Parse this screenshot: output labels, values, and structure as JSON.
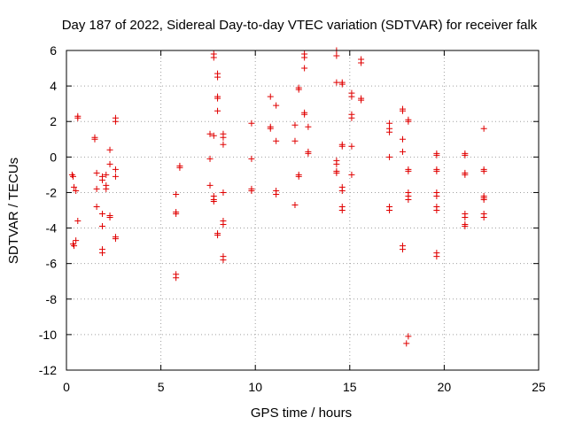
{
  "chart_data": {
    "type": "scatter",
    "title": "Day 187 of 2022, Sidereal Day-to-day VTEC variation (SDTVAR) for receiver falk",
    "xlabel": "GPS time / hours",
    "ylabel": "SDTVAR / TECUs",
    "xlim": [
      0,
      25
    ],
    "ylim": [
      -12,
      6
    ],
    "xticks": [
      0,
      5,
      10,
      15,
      20,
      25
    ],
    "yticks": [
      -12,
      -10,
      -8,
      -6,
      -4,
      -2,
      0,
      2,
      4,
      6
    ],
    "xtick_labels": [
      "0",
      "5",
      "10",
      "15",
      "20",
      "25"
    ],
    "ytick_labels": [
      "-12",
      "-10",
      "-8",
      "-6",
      "-4",
      "-2",
      "0",
      "2",
      "4",
      "6"
    ],
    "grid": true,
    "marker": "plus",
    "color": "#e00000",
    "series": [
      {
        "name": "SDTVAR",
        "points": [
          [
            0.3,
            -1.0
          ],
          [
            0.35,
            -1.1
          ],
          [
            0.4,
            -1.7
          ],
          [
            0.5,
            -1.9
          ],
          [
            0.35,
            -4.9
          ],
          [
            0.4,
            -5.0
          ],
          [
            0.5,
            -4.7
          ],
          [
            0.6,
            2.3
          ],
          [
            0.6,
            2.2
          ],
          [
            0.6,
            -3.6
          ],
          [
            1.5,
            1.1
          ],
          [
            1.5,
            1.0
          ],
          [
            1.6,
            -0.9
          ],
          [
            1.6,
            -1.8
          ],
          [
            1.6,
            -2.8
          ],
          [
            1.9,
            -1.1
          ],
          [
            1.9,
            -1.3
          ],
          [
            1.9,
            -3.2
          ],
          [
            1.9,
            -3.9
          ],
          [
            1.9,
            -5.2
          ],
          [
            1.9,
            -5.4
          ],
          [
            2.1,
            -1.0
          ],
          [
            2.1,
            -1.6
          ],
          [
            2.1,
            -1.8
          ],
          [
            2.3,
            0.4
          ],
          [
            2.3,
            -0.4
          ],
          [
            2.3,
            -3.3
          ],
          [
            2.3,
            -3.4
          ],
          [
            2.6,
            2.2
          ],
          [
            2.6,
            2.0
          ],
          [
            2.6,
            -0.7
          ],
          [
            2.6,
            -1.1
          ],
          [
            2.6,
            -4.5
          ],
          [
            2.6,
            -4.6
          ],
          [
            5.8,
            -2.1
          ],
          [
            5.8,
            -3.1
          ],
          [
            5.8,
            -3.2
          ],
          [
            5.8,
            -6.6
          ],
          [
            5.8,
            -6.8
          ],
          [
            6.0,
            -0.5
          ],
          [
            6.0,
            -0.6
          ],
          [
            7.6,
            1.3
          ],
          [
            7.6,
            -0.1
          ],
          [
            7.6,
            -1.6
          ],
          [
            7.8,
            5.8
          ],
          [
            7.8,
            5.6
          ],
          [
            7.8,
            1.2
          ],
          [
            7.8,
            -2.2
          ],
          [
            7.8,
            -2.4
          ],
          [
            7.8,
            -2.5
          ],
          [
            8.0,
            4.7
          ],
          [
            8.0,
            4.5
          ],
          [
            8.0,
            3.4
          ],
          [
            8.0,
            3.3
          ],
          [
            8.0,
            2.6
          ],
          [
            8.0,
            -4.3
          ],
          [
            8.0,
            -4.4
          ],
          [
            8.3,
            1.3
          ],
          [
            8.3,
            1.1
          ],
          [
            8.3,
            0.7
          ],
          [
            8.3,
            -2.0
          ],
          [
            8.3,
            -3.6
          ],
          [
            8.3,
            -3.8
          ],
          [
            8.3,
            -5.6
          ],
          [
            8.3,
            -5.8
          ],
          [
            9.8,
            1.9
          ],
          [
            9.8,
            -0.1
          ],
          [
            9.8,
            -1.8
          ],
          [
            9.8,
            -1.9
          ],
          [
            10.8,
            3.4
          ],
          [
            10.8,
            1.7
          ],
          [
            10.8,
            1.6
          ],
          [
            11.1,
            2.9
          ],
          [
            11.1,
            0.9
          ],
          [
            11.1,
            -1.9
          ],
          [
            11.1,
            -2.1
          ],
          [
            12.1,
            1.8
          ],
          [
            12.1,
            0.9
          ],
          [
            12.1,
            -2.7
          ],
          [
            12.3,
            3.9
          ],
          [
            12.3,
            3.8
          ],
          [
            12.3,
            -1.0
          ],
          [
            12.3,
            -1.1
          ],
          [
            12.6,
            5.8
          ],
          [
            12.6,
            5.6
          ],
          [
            12.6,
            5.0
          ],
          [
            12.6,
            2.5
          ],
          [
            12.6,
            2.4
          ],
          [
            12.8,
            1.7
          ],
          [
            12.8,
            0.3
          ],
          [
            12.8,
            0.2
          ],
          [
            14.3,
            6.0
          ],
          [
            14.3,
            5.7
          ],
          [
            14.3,
            4.2
          ],
          [
            14.3,
            -0.2
          ],
          [
            14.3,
            -0.4
          ],
          [
            14.3,
            -0.8
          ],
          [
            14.3,
            -0.9
          ],
          [
            14.6,
            4.2
          ],
          [
            14.6,
            4.1
          ],
          [
            14.6,
            0.7
          ],
          [
            14.6,
            0.6
          ],
          [
            14.6,
            -1.7
          ],
          [
            14.6,
            -1.9
          ],
          [
            14.6,
            -2.8
          ],
          [
            14.6,
            -3.0
          ],
          [
            15.1,
            3.6
          ],
          [
            15.1,
            3.4
          ],
          [
            15.1,
            2.4
          ],
          [
            15.1,
            2.2
          ],
          [
            15.1,
            0.6
          ],
          [
            15.1,
            -1.0
          ],
          [
            15.6,
            5.5
          ],
          [
            15.6,
            5.3
          ],
          [
            15.6,
            3.3
          ],
          [
            15.6,
            3.2
          ],
          [
            17.1,
            1.9
          ],
          [
            17.1,
            1.6
          ],
          [
            17.1,
            1.4
          ],
          [
            17.1,
            0.0
          ],
          [
            17.1,
            -2.8
          ],
          [
            17.1,
            -3.0
          ],
          [
            17.8,
            2.7
          ],
          [
            17.8,
            2.6
          ],
          [
            17.8,
            1.0
          ],
          [
            17.8,
            0.3
          ],
          [
            17.8,
            -5.0
          ],
          [
            17.8,
            -5.2
          ],
          [
            18.1,
            2.1
          ],
          [
            18.1,
            2.0
          ],
          [
            18.1,
            -0.7
          ],
          [
            18.1,
            -0.8
          ],
          [
            18.1,
            -2.0
          ],
          [
            18.1,
            -2.2
          ],
          [
            18.1,
            -2.4
          ],
          [
            18.1,
            -10.1
          ],
          [
            18.0,
            -10.5
          ],
          [
            19.6,
            0.2
          ],
          [
            19.6,
            0.1
          ],
          [
            19.6,
            -0.7
          ],
          [
            19.6,
            -0.8
          ],
          [
            19.6,
            -2.0
          ],
          [
            19.6,
            -2.2
          ],
          [
            19.6,
            -2.8
          ],
          [
            19.6,
            -3.0
          ],
          [
            19.6,
            -5.4
          ],
          [
            19.6,
            -5.6
          ],
          [
            21.1,
            0.2
          ],
          [
            21.1,
            0.1
          ],
          [
            21.1,
            -0.9
          ],
          [
            21.1,
            -1.0
          ],
          [
            21.1,
            -3.2
          ],
          [
            21.1,
            -3.4
          ],
          [
            21.1,
            -3.8
          ],
          [
            21.1,
            -3.9
          ],
          [
            22.1,
            1.6
          ],
          [
            22.1,
            -0.7
          ],
          [
            22.1,
            -0.8
          ],
          [
            22.1,
            -2.2
          ],
          [
            22.1,
            -2.3
          ],
          [
            22.1,
            -2.4
          ],
          [
            22.1,
            -3.2
          ],
          [
            22.1,
            -3.4
          ]
        ]
      }
    ]
  }
}
